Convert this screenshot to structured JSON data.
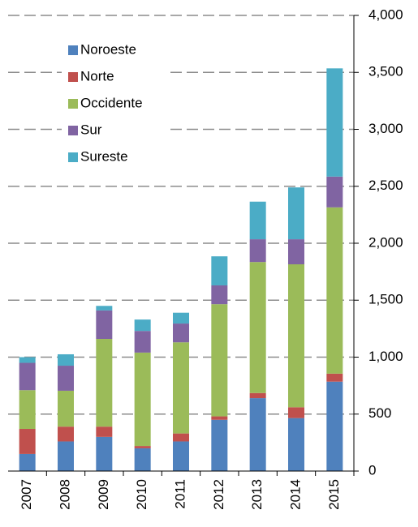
{
  "chart_data": {
    "type": "stacked_bar",
    "categories": [
      "2007",
      "2008",
      "2009",
      "2010",
      "2011",
      "2012",
      "2013",
      "2014",
      "2015"
    ],
    "series": [
      {
        "name": "Noroeste",
        "color": "#4f81bd",
        "values": [
          150,
          260,
          300,
          200,
          260,
          450,
          640,
          465,
          785
        ]
      },
      {
        "name": "Norte",
        "color": "#c0504d",
        "values": [
          220,
          130,
          90,
          20,
          70,
          30,
          45,
          95,
          70
        ]
      },
      {
        "name": "Occidente",
        "color": "#9bbb59",
        "values": [
          340,
          315,
          770,
          820,
          800,
          985,
          1150,
          1255,
          1460
        ]
      },
      {
        "name": "Sur",
        "color": "#8064a2",
        "values": [
          240,
          220,
          250,
          190,
          165,
          165,
          200,
          220,
          270
        ]
      },
      {
        "name": "Sureste",
        "color": "#4bacc6",
        "values": [
          50,
          100,
          40,
          100,
          95,
          255,
          330,
          455,
          950
        ]
      }
    ],
    "ylim": [
      0,
      4000
    ],
    "yticks": [
      0,
      500,
      {
        "value": 1000,
        "label": "1,000"
      },
      {
        "value": 1500,
        "label": "1,500"
      },
      {
        "value": 2000,
        "label": "2,000"
      },
      {
        "value": 2500,
        "label": "2,500"
      },
      {
        "value": 3000,
        "label": "3,000"
      },
      {
        "value": 3500,
        "label": "3,500"
      },
      {
        "value": 4000,
        "label": "4,000"
      }
    ],
    "grid": true,
    "legend": "upper-left"
  }
}
